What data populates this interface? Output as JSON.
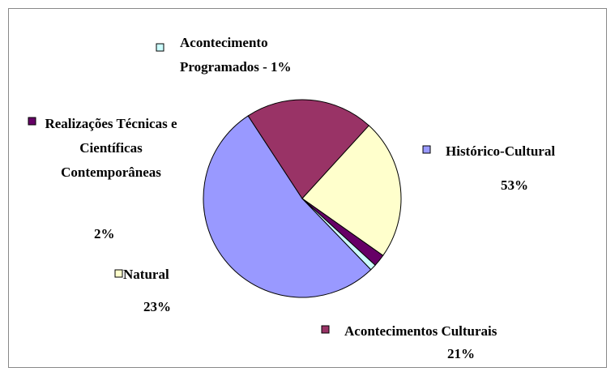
{
  "chart_data": {
    "type": "pie",
    "categories": [
      "Histórico-Cultural",
      "Acontecimentos Culturais",
      "Natural",
      "Realizações Técnicas e Científicas Contemporâneas",
      "Acontecimento Programados - 1%"
    ],
    "values": [
      53,
      21,
      23,
      2,
      1
    ],
    "value_labels": [
      "53%",
      "21%",
      "23%",
      "2%",
      null
    ],
    "colors": [
      "#9999ff",
      "#993366",
      "#ffffcc",
      "#660066",
      "#ccffff"
    ]
  }
}
